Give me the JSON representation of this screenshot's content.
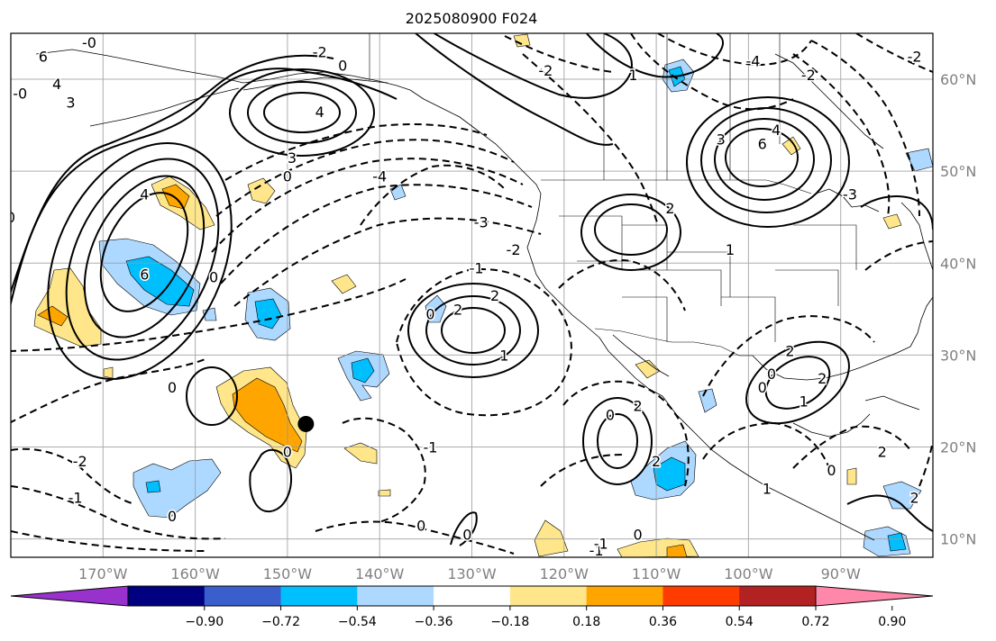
{
  "title": "2025080900 F024",
  "map": {
    "projection": "PlateCarree",
    "lon_range": [
      -180,
      -80
    ],
    "lat_range": [
      8,
      65
    ],
    "grid": true,
    "lon_ticks": [
      {
        "lon": -170,
        "label": "170°W"
      },
      {
        "lon": -160,
        "label": "160°W"
      },
      {
        "lon": -150,
        "label": "150°W"
      },
      {
        "lon": -140,
        "label": "140°W"
      },
      {
        "lon": -130,
        "label": "130°W"
      },
      {
        "lon": -120,
        "label": "120°W"
      },
      {
        "lon": -110,
        "label": "110°W"
      },
      {
        "lon": -100,
        "label": "100°W"
      },
      {
        "lon": -90,
        "label": "90°W"
      }
    ],
    "lat_ticks": [
      {
        "lat": 10,
        "label": "10°N"
      },
      {
        "lat": 20,
        "label": "20°N"
      },
      {
        "lat": 30,
        "label": "30°N"
      },
      {
        "lat": 40,
        "label": "40°N"
      },
      {
        "lat": 50,
        "label": "50°N"
      },
      {
        "lat": 60,
        "label": "60°N"
      }
    ],
    "marker": {
      "lon": -148,
      "lat": 22.5,
      "color": "#000000"
    }
  },
  "colorbar": {
    "bins": [
      {
        "color": "#9932cc"
      },
      {
        "color": "#000080"
      },
      {
        "color": "#3a5fcd"
      },
      {
        "color": "#00bfff"
      },
      {
        "color": "#add8ff"
      },
      {
        "color": "#ffffff"
      },
      {
        "color": "#ffe68a"
      },
      {
        "color": "#ffa500"
      },
      {
        "color": "#ff3c00"
      },
      {
        "color": "#b22222"
      },
      {
        "color": "#ff88aa"
      }
    ],
    "tick_labels": [
      "−0.90",
      "−0.72",
      "−0.54",
      "−0.36",
      "−0.18",
      "0.18",
      "0.36",
      "0.54",
      "0.72",
      "0.90"
    ]
  },
  "contour_labels": [
    {
      "text": "6",
      "lon": -176.5,
      "lat": 62.5
    },
    {
      "text": "4",
      "lon": -175,
      "lat": 59.5
    },
    {
      "text": "3",
      "lon": -173.5,
      "lat": 57.5
    },
    {
      "text": "-0",
      "lon": -179,
      "lat": 58.5
    },
    {
      "text": "-0",
      "lon": -171.5,
      "lat": 64
    },
    {
      "text": "0",
      "lon": -180,
      "lat": 45
    },
    {
      "text": "-2",
      "lon": -146.5,
      "lat": 63
    },
    {
      "text": "0",
      "lon": -144,
      "lat": 61.5
    },
    {
      "text": "4",
      "lon": -146.5,
      "lat": 56.5
    },
    {
      "text": "3",
      "lon": -149.5,
      "lat": 51.5
    },
    {
      "text": "0",
      "lon": -150,
      "lat": 49.5
    },
    {
      "text": "4",
      "lon": -165.5,
      "lat": 47.5
    },
    {
      "text": "6",
      "lon": -165.5,
      "lat": 38.8
    },
    {
      "text": "0",
      "lon": -158,
      "lat": 38.5
    },
    {
      "text": "-4",
      "lon": -140,
      "lat": 49.5
    },
    {
      "text": "-3",
      "lon": -129,
      "lat": 44.5
    },
    {
      "text": "-2",
      "lon": -125.5,
      "lat": 41.5
    },
    {
      "text": "-1",
      "lon": -129.5,
      "lat": 39.5
    },
    {
      "text": "2",
      "lon": -127.5,
      "lat": 36.5
    },
    {
      "text": "2",
      "lon": -131.5,
      "lat": 35
    },
    {
      "text": "0",
      "lon": -134.5,
      "lat": 34.5
    },
    {
      "text": "1",
      "lon": -126.5,
      "lat": 30
    },
    {
      "text": "-2",
      "lon": -122,
      "lat": 61
    },
    {
      "text": "-4",
      "lon": -99.5,
      "lat": 62
    },
    {
      "text": "-2",
      "lon": -93.5,
      "lat": 60.5
    },
    {
      "text": "-2",
      "lon": -82,
      "lat": 62.5
    },
    {
      "text": "1",
      "lon": -112.5,
      "lat": 60.5
    },
    {
      "text": "3",
      "lon": -103,
      "lat": 53.5
    },
    {
      "text": "4",
      "lon": -97,
      "lat": 54.5
    },
    {
      "text": "6",
      "lon": -98.5,
      "lat": 53
    },
    {
      "text": "2",
      "lon": -108.5,
      "lat": 46
    },
    {
      "text": "1",
      "lon": -102,
      "lat": 41.5
    },
    {
      "text": "-3",
      "lon": -89,
      "lat": 47.5
    },
    {
      "text": "2",
      "lon": -95.5,
      "lat": 30.5
    },
    {
      "text": "2",
      "lon": -92,
      "lat": 27.5
    },
    {
      "text": "0",
      "lon": -98.5,
      "lat": 26.5
    },
    {
      "text": "1",
      "lon": -94,
      "lat": 25
    },
    {
      "text": "0",
      "lon": -162.5,
      "lat": 26.5
    },
    {
      "text": "0",
      "lon": -150,
      "lat": 19.5
    },
    {
      "text": "-2",
      "lon": -172.5,
      "lat": 18.5
    },
    {
      "text": "-1",
      "lon": -173,
      "lat": 14.5
    },
    {
      "text": "0",
      "lon": -162.5,
      "lat": 12.5
    },
    {
      "text": "0",
      "lon": -115,
      "lat": 23.5
    },
    {
      "text": "2",
      "lon": -112,
      "lat": 24.5
    },
    {
      "text": "2",
      "lon": -110,
      "lat": 18.5
    },
    {
      "text": "0",
      "lon": -135.5,
      "lat": 11.5
    },
    {
      "text": "-1",
      "lon": -134.5,
      "lat": 20
    },
    {
      "text": "0",
      "lon": -130.5,
      "lat": 10.5
    },
    {
      "text": "0",
      "lon": -112,
      "lat": 10.5
    },
    {
      "text": "-1",
      "lon": -116.5,
      "lat": 8.8
    },
    {
      "text": "0",
      "lon": -91,
      "lat": 17.5
    },
    {
      "text": "2",
      "lon": -85.5,
      "lat": 19.5
    },
    {
      "text": "2",
      "lon": -82,
      "lat": 14.5
    },
    {
      "text": "-1",
      "lon": -116,
      "lat": 9.5
    },
    {
      "text": "1",
      "lon": -98,
      "lat": 15.5
    },
    {
      "text": "0",
      "lon": -97.5,
      "lat": 28
    }
  ]
}
